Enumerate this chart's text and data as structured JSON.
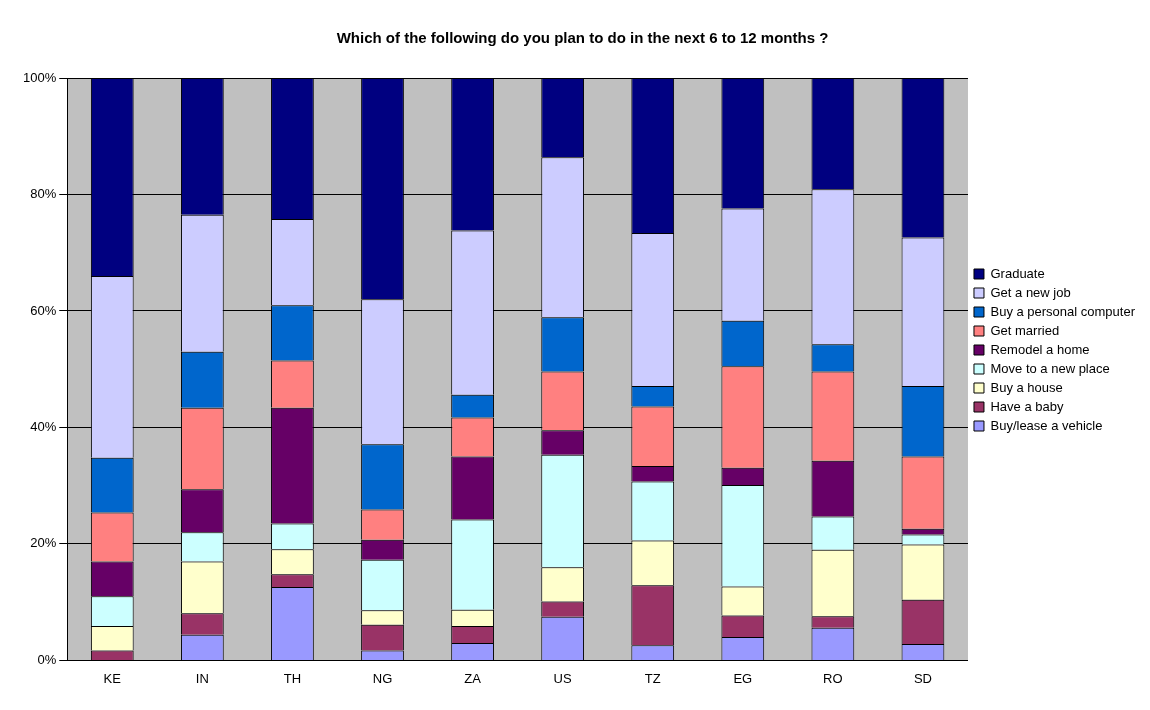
{
  "chart_data": {
    "type": "bar",
    "title": "Which of the following do you plan to do in the next 6 to 12 months ?",
    "categories": [
      "KE",
      "IN",
      "TH",
      "NG",
      "ZA",
      "US",
      "TZ",
      "EG",
      "RO",
      "SD"
    ],
    "stacked": true,
    "series": [
      {
        "name": "Buy/lease a vehicle",
        "color": "#9999ff",
        "values": [
          0,
          4.4,
          12.6,
          1.7,
          3,
          7.5,
          2.6,
          4,
          5.6,
          2.8
        ]
      },
      {
        "name": "Have a baby",
        "color": "#993366",
        "values": [
          1.7,
          3.7,
          2.2,
          4.4,
          2.9,
          2.6,
          10.3,
          3.7,
          2,
          7.6
        ]
      },
      {
        "name": "Buy a house",
        "color": "#ffffcc",
        "values": [
          4.2,
          8.9,
          4.3,
          2.5,
          2.8,
          5.9,
          7.7,
          5,
          11.4,
          9.5
        ]
      },
      {
        "name": "Move to a new place",
        "color": "#ccffff",
        "values": [
          5.1,
          5,
          4.4,
          8.7,
          15.5,
          19.3,
          10.1,
          17.4,
          5.7,
          1.7
        ]
      },
      {
        "name": "Remodel a home",
        "color": "#660066",
        "values": [
          6,
          7.4,
          19.9,
          3.4,
          10.8,
          4.2,
          2.7,
          3,
          9.6,
          1
        ]
      },
      {
        "name": "Get married",
        "color": "#ff8080",
        "values": [
          8.4,
          14,
          8.1,
          5.2,
          6.7,
          10.1,
          10.2,
          17.4,
          15.3,
          12.4
        ]
      },
      {
        "name": "Buy a personal computer",
        "color": "#0066cc",
        "values": [
          9.4,
          9.6,
          9.5,
          11.2,
          3.9,
          9.3,
          3.5,
          7.8,
          4.7,
          12.1
        ]
      },
      {
        "name": "Get a new job",
        "color": "#ccccff",
        "values": [
          31.2,
          23.5,
          14.8,
          24.9,
          28.2,
          27.5,
          26.3,
          19.3,
          26.6,
          25.5
        ]
      },
      {
        "name": "Graduate",
        "color": "#000080",
        "values": [
          34,
          23.5,
          24.2,
          38,
          26.2,
          13.6,
          26.6,
          22.4,
          19.1,
          27.4
        ]
      }
    ],
    "ylim": [
      0,
      100
    ],
    "yticks": [
      {
        "value": 0,
        "label": "0%"
      },
      {
        "value": 20,
        "label": "20%"
      },
      {
        "value": 40,
        "label": "40%"
      },
      {
        "value": 60,
        "label": "60%"
      },
      {
        "value": 80,
        "label": "80%"
      },
      {
        "value": 100,
        "label": "100%"
      }
    ],
    "grid": "y",
    "legend": "right"
  }
}
